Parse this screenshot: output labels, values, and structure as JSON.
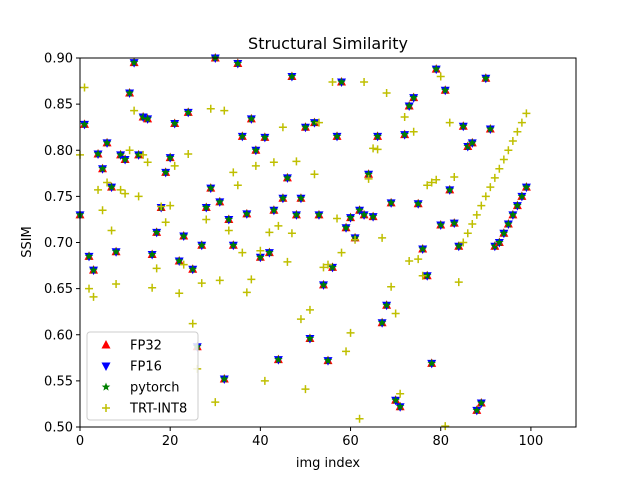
{
  "chart_data": {
    "type": "scatter",
    "title": "Structural Similarity",
    "xlabel": "img index",
    "ylabel": "SSIM",
    "xlim": [
      0,
      110
    ],
    "ylim": [
      0.5,
      0.9
    ],
    "xticks": [
      0,
      20,
      40,
      60,
      80,
      100
    ],
    "yticks": [
      0.5,
      0.55,
      0.6,
      0.65,
      0.7,
      0.75,
      0.8,
      0.85,
      0.9
    ],
    "xtick_labels": [
      "0",
      "20",
      "40",
      "60",
      "80",
      "100"
    ],
    "ytick_labels": [
      "0.50",
      "0.55",
      "0.60",
      "0.65",
      "0.70",
      "0.75",
      "0.80",
      "0.85",
      "0.90"
    ],
    "grid": false,
    "legend_position": "lower-left",
    "series": [
      {
        "name": "FP32",
        "marker": "triangle-up",
        "color": "#ff0000"
      },
      {
        "name": "FP16",
        "marker": "triangle-down",
        "color": "#0000ff"
      },
      {
        "name": "pytorch",
        "marker": "star",
        "color": "#008000"
      },
      {
        "name": "TRT-INT8",
        "marker": "plus",
        "color": "#bfbf00"
      }
    ],
    "x": [
      0,
      1,
      2,
      3,
      4,
      5,
      6,
      7,
      8,
      9,
      10,
      11,
      12,
      13,
      14,
      15,
      16,
      17,
      18,
      19,
      20,
      21,
      22,
      23,
      24,
      25,
      26,
      27,
      28,
      29,
      30,
      31,
      32,
      33,
      34,
      35,
      36,
      37,
      38,
      39,
      40,
      41,
      42,
      43,
      44,
      45,
      46,
      47,
      48,
      49,
      50,
      51,
      52,
      53,
      54,
      55,
      56,
      57,
      58,
      59,
      60,
      61,
      62,
      63,
      64,
      65,
      66,
      67,
      68,
      69,
      70,
      71,
      72,
      73,
      74,
      75,
      76,
      77,
      78,
      79,
      80,
      81,
      82,
      83,
      84,
      85,
      86,
      87,
      88,
      89,
      90,
      91,
      92,
      93,
      94,
      95,
      96,
      97,
      98,
      99
    ],
    "values_fp": [
      0.73,
      0.828,
      0.685,
      0.67,
      0.796,
      0.78,
      0.808,
      0.76,
      0.69,
      0.795,
      0.79,
      0.862,
      0.895,
      0.795,
      0.836,
      0.834,
      0.687,
      0.711,
      0.738,
      0.776,
      0.792,
      0.829,
      0.68,
      0.707,
      0.841,
      0.671,
      0.587,
      0.697,
      0.738,
      0.759,
      0.9,
      0.744,
      0.552,
      0.725,
      0.697,
      0.894,
      0.815,
      0.731,
      0.834,
      0.8,
      0.684,
      0.814,
      0.689,
      0.735,
      0.573,
      0.748,
      0.77,
      0.88,
      0.73,
      0.748,
      0.825,
      0.596,
      0.83,
      0.73,
      0.654,
      0.572,
      0.673,
      0.815,
      0.874,
      0.716,
      0.727,
      0.705,
      0.735,
      0.73,
      0.774,
      0.728,
      0.815,
      0.613,
      0.632,
      0.743,
      0.529,
      0.522,
      0.817,
      0.848,
      0.857,
      0.742,
      0.693,
      0.664,
      0.569,
      0.888,
      0.719,
      0.865,
      0.757,
      0.721,
      0.696,
      0.826,
      0.804,
      0.808,
      0.518,
      0.526,
      0.878,
      0.823,
      0.696,
      0.7,
      0.71,
      0.72,
      0.73,
      0.74,
      0.75,
      0.76
    ],
    "values_int8": [
      0.795,
      0.868,
      0.65,
      0.641,
      0.757,
      0.735,
      0.765,
      0.713,
      0.655,
      0.757,
      0.753,
      0.8,
      0.843,
      0.75,
      0.795,
      0.787,
      0.651,
      0.672,
      0.739,
      0.722,
      0.74,
      0.783,
      0.645,
      0.676,
      0.796,
      0.612,
      0.563,
      0.656,
      0.725,
      0.845,
      0.527,
      0.659,
      0.843,
      0.713,
      0.776,
      0.762,
      0.689,
      0.646,
      0.66,
      0.783,
      0.691,
      0.55,
      0.711,
      0.787,
      0.718,
      0.825,
      0.679,
      0.71,
      0.788,
      0.617,
      0.541,
      0.627,
      0.774,
      0.83,
      0.673,
      0.676,
      0.874,
      0.726,
      0.689,
      0.582,
      0.602,
      0.703,
      0.509,
      0.874,
      0.769,
      0.802,
      0.801,
      0.705,
      0.862,
      0.652,
      0.623,
      0.536,
      0.836,
      0.68,
      0.82,
      0.682,
      0.664,
      0.762,
      0.765,
      0.768,
      0.88,
      0.501,
      0.83,
      0.771,
      0.657,
      0.7,
      0.71,
      0.72,
      0.73,
      0.74,
      0.75,
      0.76,
      0.77,
      0.78,
      0.79,
      0.8,
      0.81,
      0.82,
      0.83,
      0.84
    ]
  }
}
